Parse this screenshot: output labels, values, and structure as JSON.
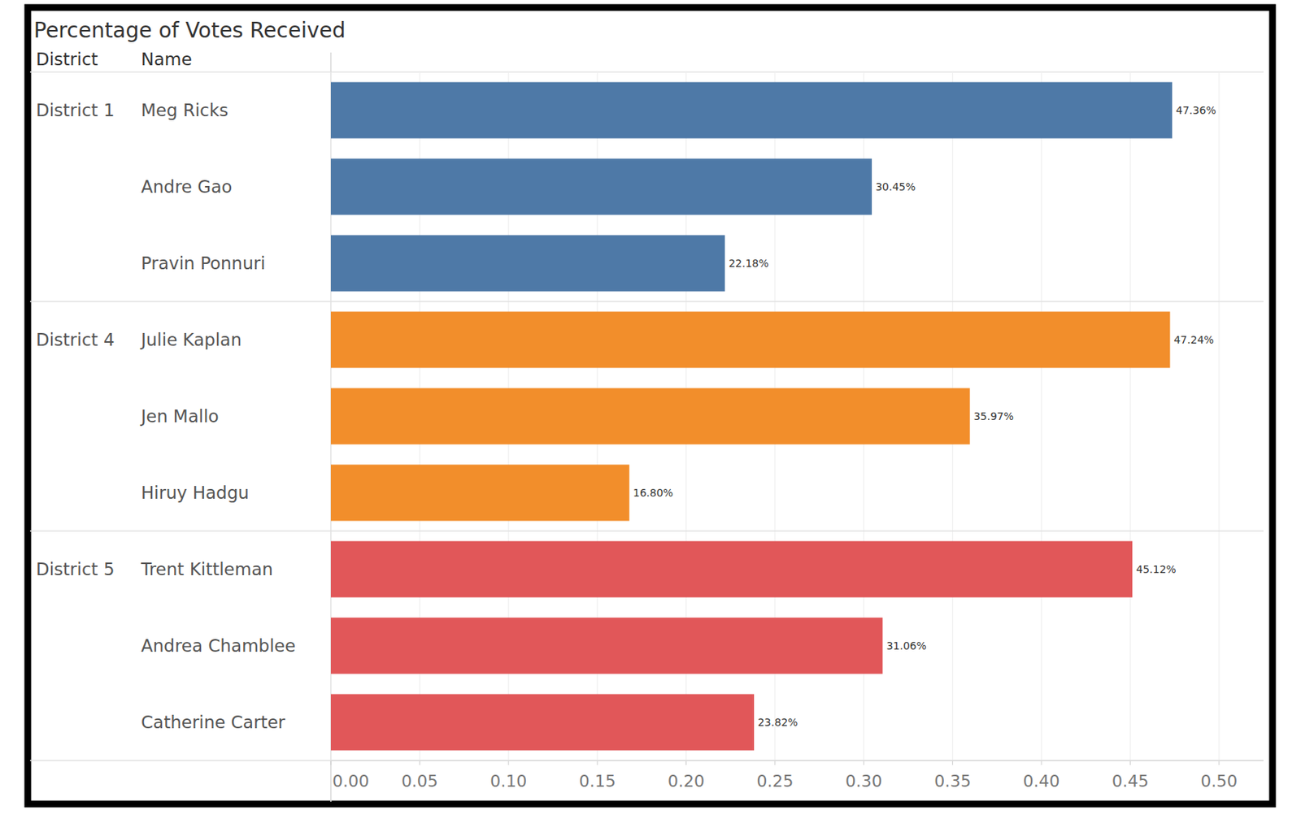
{
  "chart_data": {
    "type": "bar",
    "orientation": "horizontal",
    "title": "Percentage of Votes Received",
    "header_labels": [
      "District",
      "Name"
    ],
    "series": [
      {
        "name": "District 1",
        "color": "#4e79a7",
        "categories": [
          "Meg Ricks",
          "Andre Gao",
          "Pravin Ponnuri"
        ],
        "values": [
          0.4736,
          0.3045,
          0.2218
        ],
        "value_labels": [
          "47.36%",
          "30.45%",
          "22.18%"
        ]
      },
      {
        "name": "District 4",
        "color": "#f28e2b",
        "categories": [
          "Julie Kaplan",
          "Jen Mallo",
          "Hiruy Hadgu"
        ],
        "values": [
          0.4724,
          0.3597,
          0.168
        ],
        "value_labels": [
          "47.24%",
          "35.97%",
          "16.80%"
        ]
      },
      {
        "name": "District 5",
        "color": "#e15759",
        "categories": [
          "Trent Kittleman",
          "Andrea Chamblee",
          "Catherine Carter"
        ],
        "values": [
          0.4512,
          0.3106,
          0.2382
        ],
        "value_labels": [
          "45.12%",
          "31.06%",
          "23.82%"
        ]
      }
    ],
    "xlim": [
      0,
      0.525
    ],
    "xticks": [
      {
        "value": 0,
        "label": "0.00"
      },
      {
        "value": 0.05,
        "label": "0.05"
      },
      {
        "value": 0.1,
        "label": "0.10"
      },
      {
        "value": 0.15,
        "label": "0.15"
      },
      {
        "value": 0.2,
        "label": "0.20"
      },
      {
        "value": 0.25,
        "label": "0.25"
      },
      {
        "value": 0.3,
        "label": "0.30"
      },
      {
        "value": 0.35,
        "label": "0.35"
      },
      {
        "value": 0.4,
        "label": "0.40"
      },
      {
        "value": 0.45,
        "label": "0.45"
      },
      {
        "value": 0.5,
        "label": "0.50"
      }
    ],
    "grid": true,
    "data_labels": true
  }
}
